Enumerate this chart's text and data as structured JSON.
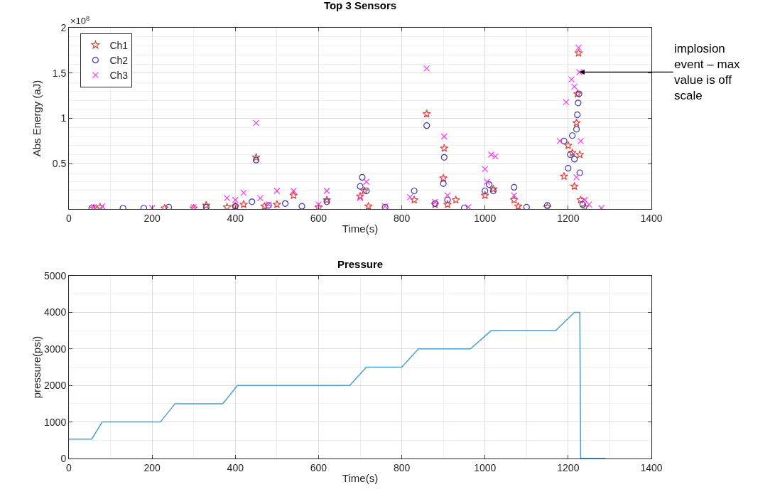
{
  "chart_data": [
    {
      "type": "scatter",
      "title": "Top 3 Sensors",
      "xlabel": "Time(s)",
      "ylabel": "Abs Energy (aJ)",
      "xlim": [
        0,
        1400
      ],
      "xticks": [
        0,
        200,
        400,
        600,
        800,
        1000,
        1200,
        1400
      ],
      "ylim": [
        0,
        2
      ],
      "yticks": [
        0.5,
        1,
        1.5,
        2
      ],
      "grid": true,
      "legend": "top left",
      "annotations": [
        "×10$^{8}$",
        {
          "text": "implosion event – max value is off scale",
          "x": 1227,
          "y": 1.51
        }
      ],
      "series": [
        {
          "name": "Ch1",
          "color": "#e8403a",
          "marker": "star",
          "x": [
            60,
            75,
            230,
            300,
            330,
            380,
            400,
            420,
            450,
            470,
            500,
            540,
            600,
            620,
            700,
            710,
            720,
            830,
            860,
            880,
            900,
            902,
            910,
            930,
            1000,
            1020,
            1070,
            1080,
            1150,
            1190,
            1200,
            1210,
            1215,
            1220,
            1222,
            1225,
            1228,
            1230,
            1240
          ],
          "values": [
            0.01,
            0.02,
            0.01,
            0.01,
            0.04,
            0.02,
            0.03,
            0.05,
            0.57,
            0.03,
            0.05,
            0.15,
            0.02,
            0.1,
            0.14,
            0.2,
            0.03,
            0.1,
            1.05,
            0.05,
            0.34,
            0.67,
            0.05,
            0.1,
            0.15,
            0.22,
            0.1,
            0.03,
            0.02,
            0.36,
            0.7,
            0.62,
            0.25,
            0.95,
            1.27,
            1.72,
            0.6,
            0.1,
            0.02
          ]
        },
        {
          "name": "Ch2",
          "color": "#3a3aa8",
          "marker": "circle",
          "x": [
            55,
            130,
            180,
            240,
            330,
            400,
            440,
            450,
            480,
            520,
            560,
            620,
            700,
            705,
            715,
            760,
            830,
            860,
            880,
            900,
            902,
            910,
            950,
            1000,
            1010,
            1020,
            1070,
            1100,
            1150,
            1190,
            1200,
            1205,
            1210,
            1215,
            1220,
            1222,
            1224,
            1226,
            1228,
            1235
          ],
          "values": [
            0.01,
            0.01,
            0.01,
            0.02,
            0.02,
            0.03,
            0.08,
            0.54,
            0.04,
            0.06,
            0.03,
            0.08,
            0.25,
            0.35,
            0.2,
            0.02,
            0.2,
            0.92,
            0.06,
            0.28,
            0.57,
            0.1,
            0.01,
            0.2,
            0.27,
            0.2,
            0.24,
            0.02,
            0.04,
            0.75,
            0.45,
            0.6,
            0.81,
            0.55,
            0.88,
            1.04,
            1.17,
            1.27,
            0.4,
            0.05
          ]
        },
        {
          "name": "Ch3",
          "color": "#ff33ff",
          "marker": "cross",
          "x": [
            60,
            80,
            200,
            300,
            380,
            400,
            420,
            450,
            460,
            480,
            500,
            540,
            600,
            620,
            700,
            715,
            760,
            820,
            860,
            880,
            902,
            910,
            960,
            1000,
            1005,
            1015,
            1025,
            1070,
            1180,
            1195,
            1208,
            1215,
            1220,
            1225,
            1227,
            1230,
            1240,
            1250,
            1280
          ],
          "values": [
            0.02,
            0.03,
            0.01,
            0.02,
            0.12,
            0.1,
            0.18,
            0.95,
            0.12,
            0.05,
            0.2,
            0.2,
            0.05,
            0.2,
            0.12,
            0.3,
            0.03,
            0.13,
            1.55,
            0.08,
            0.8,
            0.15,
            0.02,
            0.44,
            0.3,
            0.6,
            0.58,
            0.15,
            0.75,
            1.18,
            1.43,
            1.35,
            0.35,
            1.78,
            1.51,
            0.75,
            0.1,
            0.05,
            0.01
          ]
        }
      ]
    },
    {
      "type": "line",
      "title": "Pressure",
      "xlabel": "Time(s)",
      "ylabel": "pressure(psi)",
      "xlim": [
        0,
        1400
      ],
      "xticks": [
        0,
        200,
        400,
        600,
        800,
        1000,
        1200,
        1400
      ],
      "ylim": [
        0,
        5000
      ],
      "yticks": [
        0,
        1000,
        2000,
        3000,
        4000,
        5000
      ],
      "grid": true,
      "legend": false,
      "marker": "none",
      "line_style": "solid",
      "series": [
        {
          "color": "#4a9fd0",
          "x": [
            0,
            55,
            80,
            220,
            255,
            370,
            405,
            675,
            715,
            800,
            840,
            965,
            1015,
            1170,
            1215,
            1228,
            1230,
            1290
          ],
          "values": [
            530,
            530,
            1000,
            1000,
            1500,
            1500,
            2000,
            2000,
            2500,
            2500,
            3000,
            3000,
            3500,
            3500,
            4000,
            4000,
            0,
            0
          ]
        }
      ]
    }
  ]
}
